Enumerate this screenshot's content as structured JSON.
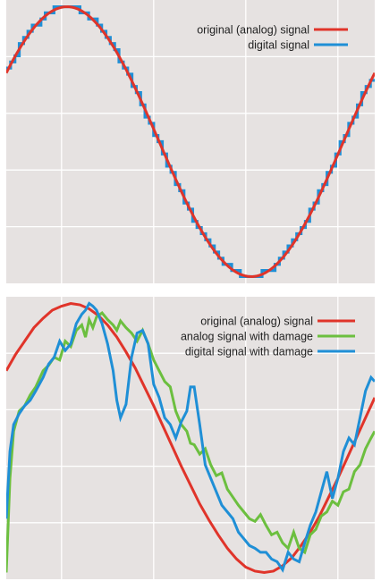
{
  "colors": {
    "background": "#e6e2e1",
    "grid": "#ffffff",
    "original": "#e0342a",
    "analog_damage": "#6cbf3f",
    "digital": "#1f8fd6"
  },
  "chart_data": [
    {
      "type": "line",
      "title": "",
      "xlabel": "",
      "ylabel": "",
      "grid": true,
      "legend_position": "top-right",
      "xlim": [
        0,
        1
      ],
      "ylim": [
        -1.05,
        1.05
      ],
      "series": [
        {
          "name": "original (analog) signal",
          "kind": "sine",
          "amplitude": 1.0,
          "period": 1.0,
          "phase": 0.085,
          "color": "#e0342a"
        },
        {
          "name": "digital signal",
          "kind": "quantized-sine",
          "steps": 85,
          "levels": 44,
          "amplitude": 1.0,
          "period": 1.0,
          "phase": 0.085,
          "color": "#1f8fd6"
        }
      ]
    },
    {
      "type": "line",
      "title": "",
      "xlabel": "",
      "ylabel": "",
      "grid": true,
      "legend_position": "top-right",
      "xlim": [
        0,
        1
      ],
      "ylim": [
        -1.05,
        1.05
      ],
      "series": [
        {
          "name": "original (analog) signal",
          "color": "#e0342a",
          "x": [
            0.0,
            0.025,
            0.05,
            0.075,
            0.1,
            0.125,
            0.15,
            0.175,
            0.2,
            0.225,
            0.25,
            0.275,
            0.3,
            0.325,
            0.35,
            0.375,
            0.4,
            0.425,
            0.45,
            0.475,
            0.5,
            0.525,
            0.55,
            0.575,
            0.6,
            0.625,
            0.65,
            0.675,
            0.7,
            0.725,
            0.75,
            0.775,
            0.8,
            0.825,
            0.85,
            0.875,
            0.9,
            0.925,
            0.95,
            0.975,
            1.0
          ],
          "y": [
            0.5,
            0.62,
            0.72,
            0.82,
            0.89,
            0.95,
            0.98,
            1.0,
            0.99,
            0.96,
            0.91,
            0.84,
            0.75,
            0.64,
            0.52,
            0.38,
            0.24,
            0.09,
            -0.06,
            -0.21,
            -0.35,
            -0.49,
            -0.61,
            -0.72,
            -0.82,
            -0.9,
            -0.96,
            -0.99,
            -1.0,
            -0.99,
            -0.95,
            -0.89,
            -0.8,
            -0.7,
            -0.58,
            -0.44,
            -0.3,
            -0.15,
            0.0,
            0.15,
            0.3
          ]
        },
        {
          "name": "analog signal with damage",
          "color": "#6cbf3f",
          "x": [
            0.0,
            0.01,
            0.02,
            0.035,
            0.05,
            0.065,
            0.08,
            0.1,
            0.115,
            0.13,
            0.145,
            0.16,
            0.175,
            0.19,
            0.205,
            0.215,
            0.225,
            0.235,
            0.245,
            0.26,
            0.275,
            0.29,
            0.3,
            0.31,
            0.325,
            0.34,
            0.355,
            0.37,
            0.385,
            0.4,
            0.415,
            0.43,
            0.445,
            0.46,
            0.475,
            0.49,
            0.5,
            0.51,
            0.525,
            0.54,
            0.555,
            0.57,
            0.585,
            0.6,
            0.615,
            0.63,
            0.645,
            0.66,
            0.675,
            0.69,
            0.705,
            0.72,
            0.735,
            0.75,
            0.765,
            0.78,
            0.795,
            0.81,
            0.825,
            0.84,
            0.855,
            0.87,
            0.885,
            0.9,
            0.915,
            0.93,
            0.945,
            0.96,
            0.975,
            0.99,
            1.0
          ],
          "y": [
            -1.0,
            -0.3,
            0.05,
            0.2,
            0.24,
            0.32,
            0.38,
            0.5,
            0.54,
            0.6,
            0.58,
            0.72,
            0.68,
            0.8,
            0.84,
            0.75,
            0.88,
            0.82,
            0.9,
            0.93,
            0.88,
            0.84,
            0.8,
            0.87,
            0.82,
            0.78,
            0.72,
            0.8,
            0.7,
            0.58,
            0.5,
            0.42,
            0.38,
            0.2,
            0.1,
            0.05,
            -0.04,
            -0.05,
            -0.12,
            -0.08,
            -0.2,
            -0.28,
            -0.26,
            -0.38,
            -0.44,
            -0.5,
            -0.55,
            -0.6,
            -0.62,
            -0.57,
            -0.65,
            -0.72,
            -0.7,
            -0.78,
            -0.82,
            -0.7,
            -0.82,
            -0.85,
            -0.72,
            -0.68,
            -0.58,
            -0.55,
            -0.47,
            -0.5,
            -0.4,
            -0.38,
            -0.25,
            -0.2,
            -0.08,
            0.0,
            0.05
          ]
        },
        {
          "name": "digital signal with damage",
          "color": "#1f8fd6",
          "x": [
            0.0,
            0.01,
            0.02,
            0.035,
            0.05,
            0.065,
            0.08,
            0.1,
            0.115,
            0.13,
            0.145,
            0.16,
            0.175,
            0.19,
            0.205,
            0.215,
            0.225,
            0.235,
            0.245,
            0.26,
            0.275,
            0.29,
            0.3,
            0.31,
            0.325,
            0.34,
            0.355,
            0.37,
            0.385,
            0.4,
            0.415,
            0.43,
            0.445,
            0.46,
            0.475,
            0.49,
            0.5,
            0.51,
            0.525,
            0.54,
            0.555,
            0.57,
            0.585,
            0.6,
            0.615,
            0.63,
            0.645,
            0.66,
            0.675,
            0.69,
            0.705,
            0.72,
            0.735,
            0.75,
            0.765,
            0.78,
            0.795,
            0.81,
            0.825,
            0.84,
            0.855,
            0.87,
            0.885,
            0.9,
            0.915,
            0.93,
            0.945,
            0.96,
            0.975,
            0.99,
            1.0
          ],
          "y": [
            -0.6,
            -0.1,
            0.1,
            0.18,
            0.24,
            0.28,
            0.35,
            0.45,
            0.55,
            0.6,
            0.72,
            0.65,
            0.7,
            0.85,
            0.92,
            0.95,
            1.0,
            0.98,
            0.95,
            0.85,
            0.7,
            0.5,
            0.28,
            0.15,
            0.25,
            0.6,
            0.78,
            0.8,
            0.7,
            0.4,
            0.3,
            0.15,
            0.1,
            0.0,
            0.12,
            0.2,
            0.38,
            0.38,
            0.1,
            -0.2,
            -0.3,
            -0.4,
            -0.5,
            -0.55,
            -0.6,
            -0.7,
            -0.75,
            -0.8,
            -0.82,
            -0.85,
            -0.85,
            -0.9,
            -0.92,
            -0.98,
            -0.85,
            -0.9,
            -0.92,
            -0.78,
            -0.65,
            -0.55,
            -0.4,
            -0.25,
            -0.45,
            -0.3,
            -0.1,
            0.0,
            -0.05,
            0.15,
            0.35,
            0.45,
            0.42
          ]
        }
      ]
    }
  ]
}
